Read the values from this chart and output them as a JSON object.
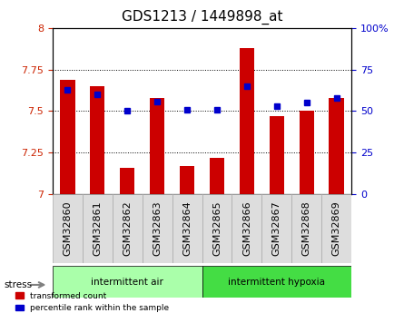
{
  "title": "GDS1213 / 1449898_at",
  "categories": [
    "GSM32860",
    "GSM32861",
    "GSM32862",
    "GSM32863",
    "GSM32864",
    "GSM32865",
    "GSM32866",
    "GSM32867",
    "GSM32868",
    "GSM32869"
  ],
  "transformed_count": [
    7.69,
    7.65,
    7.16,
    7.58,
    7.17,
    7.22,
    7.88,
    7.47,
    7.5,
    7.58
  ],
  "percentile_rank": [
    63,
    60,
    50,
    56,
    51,
    51,
    65,
    53,
    55,
    58
  ],
  "ylim_left": [
    7.0,
    8.0
  ],
  "ylim_right": [
    0,
    100
  ],
  "yticks_left": [
    7.0,
    7.25,
    7.5,
    7.75,
    8.0
  ],
  "ytick_labels_left": [
    "7",
    "7.25",
    "7.5",
    "7.75",
    "8"
  ],
  "yticks_right": [
    0,
    25,
    50,
    75,
    100
  ],
  "ytick_labels_right": [
    "0",
    "25",
    "50",
    "75",
    "100%"
  ],
  "group1_label": "intermittent air",
  "group2_label": "intermittent hypoxia",
  "bar_color": "#cc0000",
  "dot_color": "#0000cc",
  "group1_bg": "#aaffaa",
  "group2_bg": "#44dd44",
  "stress_label": "stress",
  "legend_bar_label": "transformed count",
  "legend_dot_label": "percentile rank within the sample",
  "bar_width": 0.5,
  "title_fontsize": 11,
  "tick_fontsize": 8,
  "label_fontsize": 8.5
}
